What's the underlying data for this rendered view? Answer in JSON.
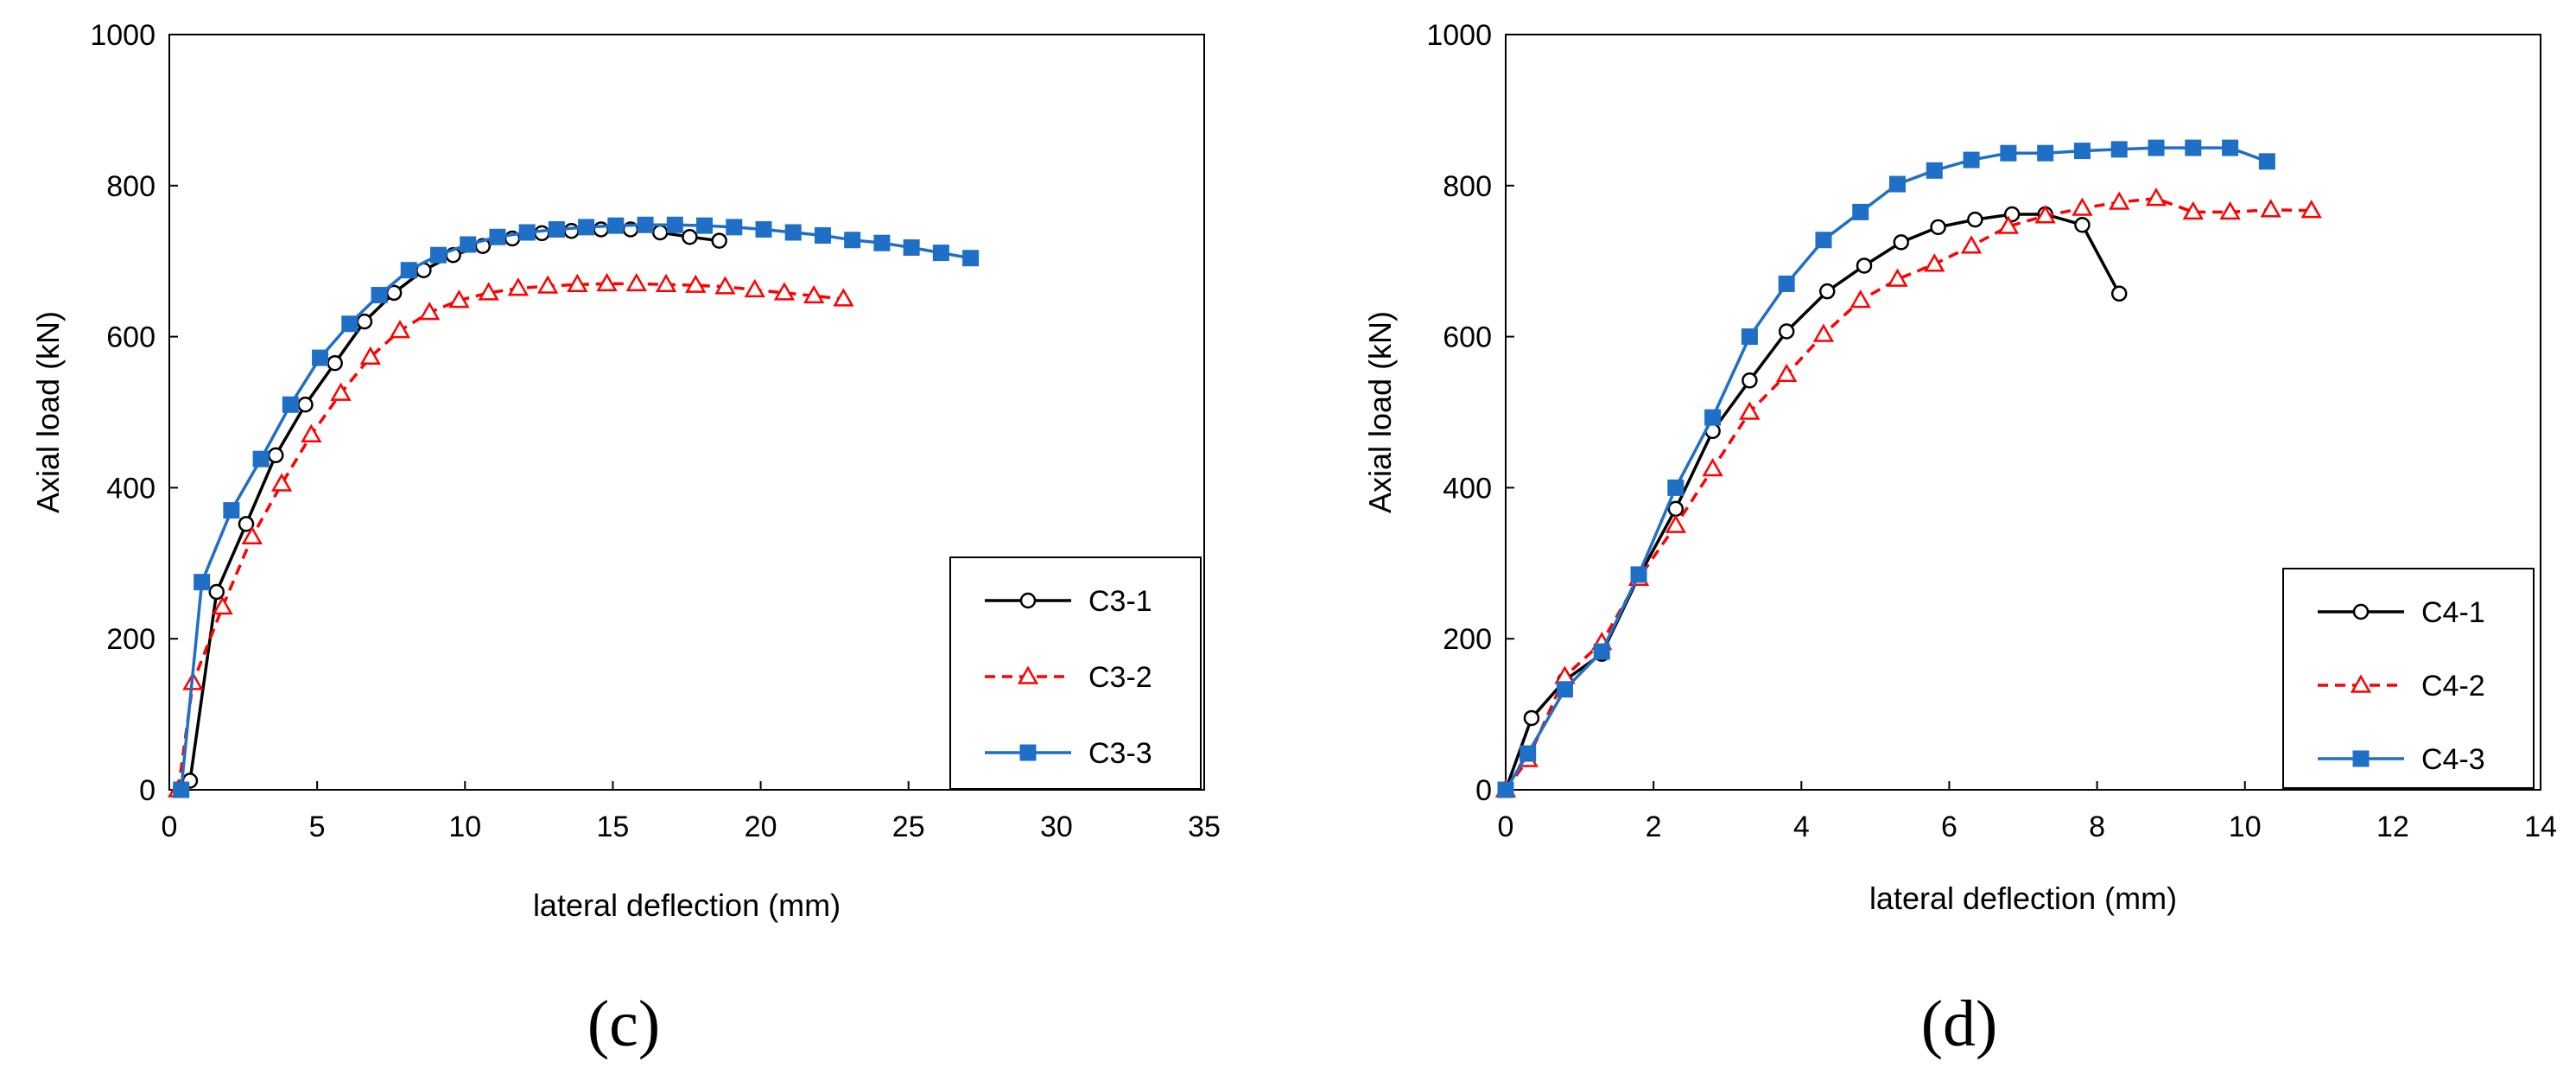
{
  "chart_data": [
    {
      "type": "line",
      "panel_label": "(c)",
      "xlabel": "lateral deflection (mm)",
      "ylabel": "Axial load (kN)",
      "xlim": [
        0,
        35
      ],
      "ylim": [
        0,
        1000
      ],
      "xticks": [
        "0",
        "5",
        "10",
        "15",
        "20",
        "25",
        "30",
        "35"
      ],
      "yticks": [
        "0",
        "200",
        "400",
        "600",
        "800",
        "1000"
      ],
      "legend_position": "bottom-right",
      "series": [
        {
          "name": "C3-1",
          "color": "#000000",
          "marker": "circle",
          "dash": "solid",
          "x": [
            0.7,
            1.6,
            2.6,
            3.6,
            4.6,
            5.6,
            6.6,
            7.6,
            8.6,
            9.6,
            10.6,
            11.6,
            12.6,
            13.6,
            14.6,
            15.6,
            16.6,
            17.6,
            18.6
          ],
          "y": [
            12,
            262,
            352,
            443,
            510,
            565,
            620,
            658,
            688,
            708,
            720,
            730,
            737,
            740,
            742,
            742,
            738,
            732,
            727
          ]
        },
        {
          "name": "C3-2",
          "color": "#ff0000",
          "marker": "triangle",
          "dash": "dashed",
          "x": [
            0.3,
            0.8,
            1.8,
            2.8,
            3.8,
            4.8,
            5.8,
            6.8,
            7.8,
            8.8,
            9.8,
            10.8,
            11.8,
            12.8,
            13.8,
            14.8,
            15.8,
            16.8,
            17.8,
            18.8,
            19.8,
            20.8,
            21.8,
            22.8
          ],
          "y": [
            0,
            142,
            242,
            335,
            405,
            470,
            525,
            573,
            608,
            632,
            648,
            658,
            664,
            667,
            669,
            670,
            670,
            669,
            668,
            666,
            662,
            658,
            654,
            650
          ]
        },
        {
          "name": "C3-3",
          "color": "#1f6fc6",
          "marker": "square",
          "dash": "solid",
          "x": [
            0.4,
            1.1,
            2.1,
            3.1,
            4.1,
            5.1,
            6.1,
            7.1,
            8.1,
            9.1,
            10.1,
            11.1,
            12.1,
            13.1,
            14.1,
            15.1,
            16.1,
            17.1,
            18.1,
            19.1,
            20.1,
            21.1,
            22.1,
            23.1,
            24.1,
            25.1,
            26.1,
            27.1
          ],
          "y": [
            0,
            275,
            370,
            438,
            510,
            572,
            617,
            655,
            688,
            708,
            722,
            732,
            738,
            742,
            745,
            747,
            748,
            748,
            747,
            745,
            742,
            738,
            734,
            728,
            724,
            718,
            711,
            704
          ]
        }
      ]
    },
    {
      "type": "line",
      "panel_label": "(d)",
      "xlabel": "lateral deflection (mm)",
      "ylabel": "Axial load (kN)",
      "xlim": [
        0,
        14
      ],
      "ylim": [
        0,
        1000
      ],
      "xticks": [
        "0",
        "2",
        "4",
        "6",
        "8",
        "10",
        "12",
        "14"
      ],
      "yticks": [
        "0",
        "200",
        "400",
        "600",
        "800",
        "1000"
      ],
      "legend_position": "bottom-right",
      "series": [
        {
          "name": "C4-1",
          "color": "#000000",
          "marker": "circle",
          "dash": "solid",
          "x": [
            0.0,
            0.35,
            0.8,
            1.3,
            1.8,
            2.3,
            2.8,
            3.3,
            3.8,
            4.35,
            4.85,
            5.35,
            5.85,
            6.35,
            6.85,
            7.3,
            7.8,
            8.3
          ],
          "y": [
            0,
            95,
            145,
            180,
            282,
            372,
            475,
            542,
            607,
            660,
            694,
            725,
            745,
            755,
            762,
            762,
            748,
            657
          ]
        },
        {
          "name": "C4-2",
          "color": "#ff0000",
          "marker": "triangle",
          "dash": "dashed",
          "x": [
            0.0,
            0.3,
            0.8,
            1.3,
            1.8,
            2.3,
            2.8,
            3.3,
            3.8,
            4.3,
            4.8,
            5.3,
            5.8,
            6.3,
            6.8,
            7.3,
            7.8,
            8.3,
            8.8,
            9.3,
            9.8,
            10.35,
            10.9
          ],
          "y": [
            0,
            40,
            150,
            195,
            280,
            350,
            425,
            500,
            550,
            603,
            648,
            676,
            696,
            720,
            746,
            760,
            770,
            778,
            783,
            765,
            765,
            768,
            767
          ]
        },
        {
          "name": "C4-3",
          "color": "#1f6fc6",
          "marker": "square",
          "dash": "solid",
          "x": [
            0.0,
            0.3,
            0.8,
            1.3,
            1.8,
            2.3,
            2.8,
            3.3,
            3.8,
            4.3,
            4.8,
            5.3,
            5.8,
            6.3,
            6.8,
            7.3,
            7.8,
            8.3,
            8.8,
            9.3,
            9.8,
            10.3
          ],
          "y": [
            0,
            48,
            133,
            183,
            285,
            400,
            493,
            600,
            670,
            728,
            765,
            802,
            820,
            834,
            843,
            843,
            846,
            848,
            850,
            850,
            850,
            832
          ]
        }
      ]
    }
  ]
}
